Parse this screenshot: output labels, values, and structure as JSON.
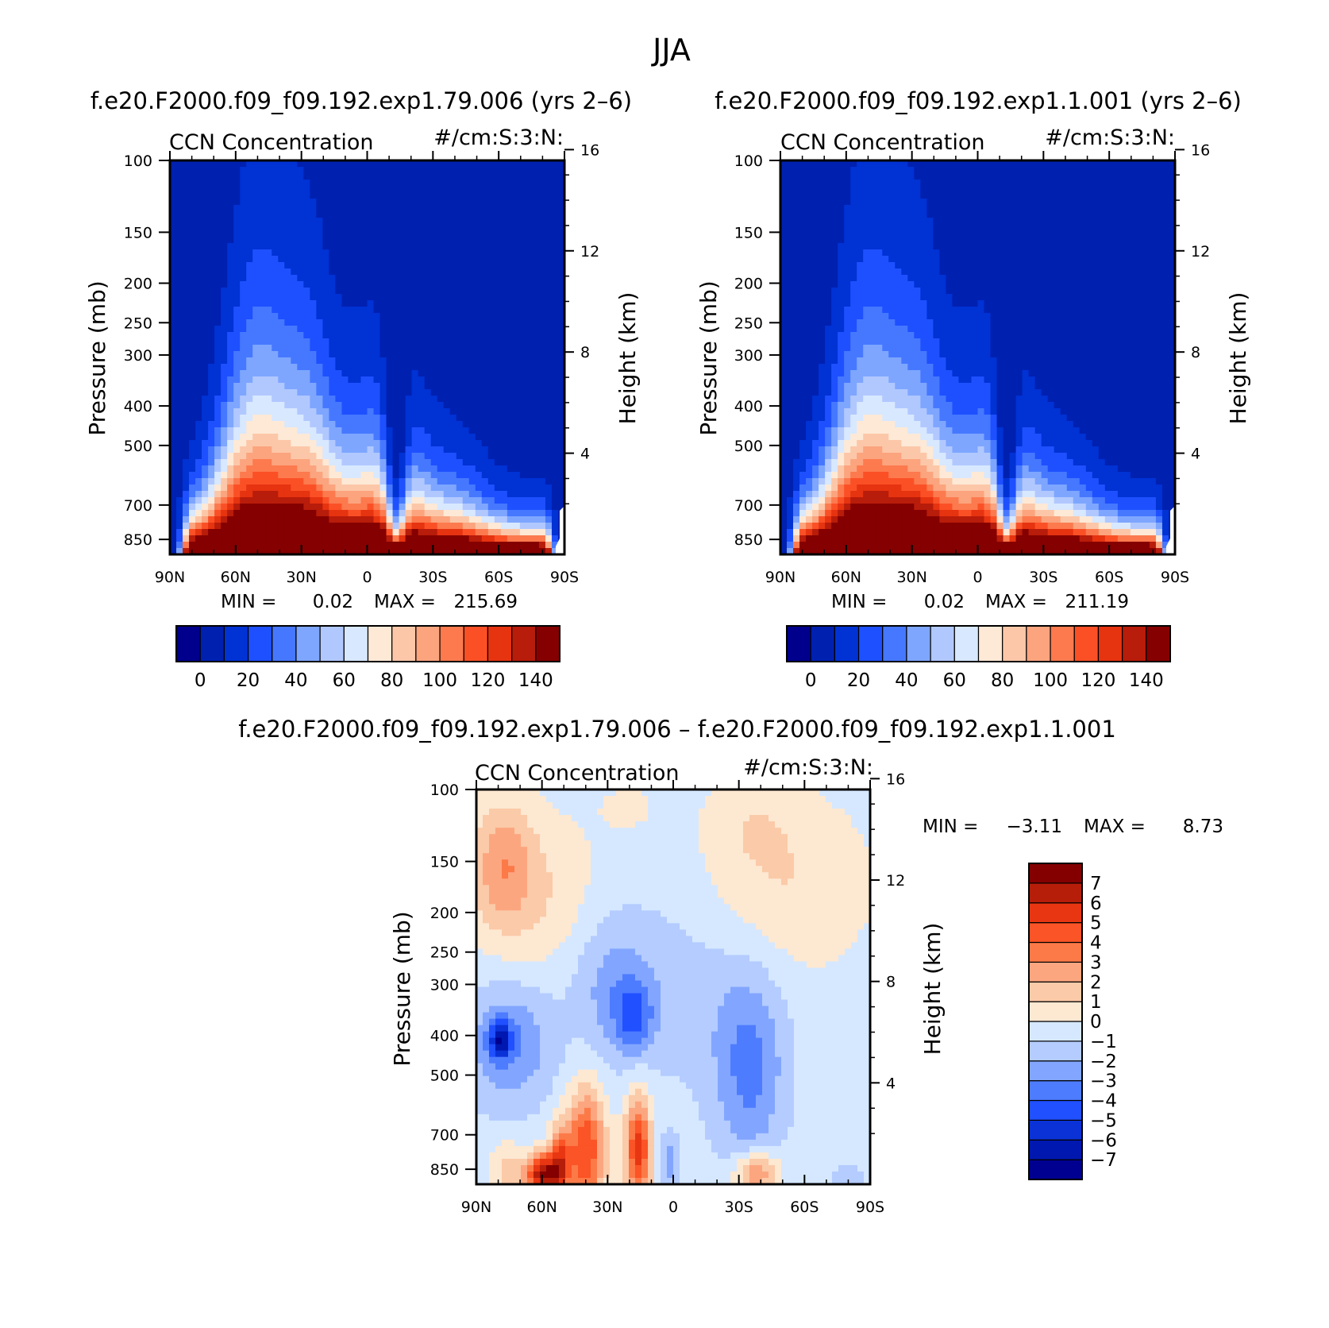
{
  "figure": {
    "title": "JJA",
    "season": "JJA",
    "bg_color": "#ffffff"
  },
  "palettes": {
    "sequential": [
      "#00008c",
      "#0020b0",
      "#0032d4",
      "#1e50ff",
      "#4678ff",
      "#7ea6ff",
      "#b1c8ff",
      "#d8e8ff",
      "#fde9d6",
      "#fcc7a8",
      "#fba47e",
      "#fc7a4e",
      "#fb5026",
      "#e63310",
      "#b81c0a",
      "#850000"
    ],
    "diverging": [
      "#000090",
      "#0018b0",
      "#0a32d6",
      "#2050ff",
      "#4e7cff",
      "#82a6ff",
      "#b4ccff",
      "#d6e8ff",
      "#fde8d2",
      "#fbcaa8",
      "#fca680",
      "#fc7a48",
      "#fb5426",
      "#e83612",
      "#b61e0a",
      "#840000"
    ]
  },
  "chart_data": [
    {
      "id": "panel-case1",
      "type": "heatmap",
      "plot_kind": "zonal-mean pressure-latitude contour",
      "case_title": "f.e20.F2000.f09_f09.192.exp1.79.006 (yrs 2–6)",
      "title_left": "CCN Concentration",
      "title_right": "#/cm:S:3:N:",
      "xlabel": "",
      "ylabel": "Pressure (mb)",
      "ylabel_right": "Height (km)",
      "x_ticks": [
        "90N",
        "60N",
        "30N",
        "0",
        "30S",
        "60S",
        "90S"
      ],
      "x_tick_values": [
        90,
        60,
        30,
        0,
        -30,
        -60,
        -90
      ],
      "y_ticks": [
        "100",
        "150",
        "200",
        "250",
        "300",
        "400",
        "500",
        "700",
        "850"
      ],
      "y_tick_values": [
        100,
        150,
        200,
        250,
        300,
        400,
        500,
        700,
        850
      ],
      "y_range_mb": [
        100,
        925
      ],
      "height_ticks": [
        "16",
        "12",
        "8",
        "4"
      ],
      "height_tick_values_km": [
        16,
        12,
        8,
        4
      ],
      "stats": {
        "min_label": "MIN =",
        "min": "0.02",
        "max_label": "MAX =",
        "max": "215.69"
      },
      "colorbar": {
        "orientation": "horizontal",
        "labels": [
          "0",
          "20",
          "40",
          "60",
          "80",
          "100",
          "120",
          "140"
        ],
        "levels": [
          -10,
          0,
          10,
          20,
          30,
          40,
          50,
          60,
          70,
          80,
          90,
          100,
          110,
          120,
          130,
          140,
          150
        ],
        "palette": "sequential"
      },
      "field": {
        "bands": [
          {
            "level": 7,
            "top": 5.8
          },
          {
            "level": 12,
            "top": 4.0
          },
          {
            "level": 17,
            "top": 3.2
          },
          {
            "level": 22,
            "top": 2.55
          },
          {
            "level": 27,
            "top": 2.05
          },
          {
            "level": 33,
            "top": 1.55
          },
          {
            "level": 40,
            "top": 1.15
          },
          {
            "level": 50,
            "top": 0.8
          },
          {
            "level": 60,
            "top": 0.5
          },
          {
            "level": 70,
            "top": 0.28
          }
        ],
        "background_level": 5,
        "notch": {
          "lat": -13,
          "depth": 3.0
        }
      }
    },
    {
      "id": "panel-case2",
      "type": "heatmap",
      "plot_kind": "zonal-mean pressure-latitude contour",
      "case_title": "f.e20.F2000.f09_f09.192.exp1.1.001 (yrs 2–6)",
      "title_left": "CCN Concentration",
      "title_right": "#/cm:S:3:N:",
      "xlabel": "",
      "ylabel": "Pressure (mb)",
      "ylabel_right": "Height (km)",
      "x_ticks": [
        "90N",
        "60N",
        "30N",
        "0",
        "30S",
        "60S",
        "90S"
      ],
      "x_tick_values": [
        90,
        60,
        30,
        0,
        -30,
        -60,
        -90
      ],
      "y_ticks": [
        "100",
        "150",
        "200",
        "250",
        "300",
        "400",
        "500",
        "700",
        "850"
      ],
      "y_tick_values": [
        100,
        150,
        200,
        250,
        300,
        400,
        500,
        700,
        850
      ],
      "y_range_mb": [
        100,
        925
      ],
      "height_ticks": [
        "16",
        "12",
        "8",
        "4"
      ],
      "height_tick_values_km": [
        16,
        12,
        8,
        4
      ],
      "stats": {
        "min_label": "MIN =",
        "min": "0.02",
        "max_label": "MAX =",
        "max": "211.19"
      },
      "colorbar": {
        "orientation": "horizontal",
        "labels": [
          "0",
          "20",
          "40",
          "60",
          "80",
          "100",
          "120",
          "140"
        ],
        "levels": [
          -10,
          0,
          10,
          20,
          30,
          40,
          50,
          60,
          70,
          80,
          90,
          100,
          110,
          120,
          130,
          140,
          150
        ],
        "palette": "sequential"
      },
      "field": {
        "bands": [
          {
            "level": 7,
            "top": 5.9
          },
          {
            "level": 12,
            "top": 4.1
          },
          {
            "level": 17,
            "top": 3.25
          },
          {
            "level": 22,
            "top": 2.6
          },
          {
            "level": 27,
            "top": 2.1
          },
          {
            "level": 33,
            "top": 1.6
          },
          {
            "level": 40,
            "top": 1.2
          },
          {
            "level": 50,
            "top": 0.85
          },
          {
            "level": 60,
            "top": 0.55
          },
          {
            "level": 70,
            "top": 0.3
          }
        ],
        "background_level": 5,
        "notch": {
          "lat": -13,
          "depth": 3.0
        }
      }
    },
    {
      "id": "panel-diff",
      "type": "heatmap",
      "plot_kind": "zonal-mean pressure-latitude difference contour",
      "case_title": "f.e20.F2000.f09_f09.192.exp1.79.006 – f.e20.F2000.f09_f09.192.exp1.1.001",
      "title_left": "CCN Concentration",
      "title_right": "#/cm:S:3:N:",
      "xlabel": "",
      "ylabel": "Pressure (mb)",
      "ylabel_right": "Height (km)",
      "x_ticks": [
        "90N",
        "60N",
        "30N",
        "0",
        "30S",
        "60S",
        "90S"
      ],
      "x_tick_values": [
        90,
        60,
        30,
        0,
        -30,
        -60,
        -90
      ],
      "y_ticks": [
        "100",
        "150",
        "200",
        "250",
        "300",
        "400",
        "500",
        "700",
        "850"
      ],
      "y_tick_values": [
        100,
        150,
        200,
        250,
        300,
        400,
        500,
        700,
        850
      ],
      "y_range_mb": [
        100,
        925
      ],
      "height_ticks": [
        "16",
        "12",
        "8",
        "4"
      ],
      "height_tick_values_km": [
        16,
        12,
        8,
        4
      ],
      "stats": {
        "min_label": "MIN =",
        "min": "−3.11",
        "max_label": "MAX =",
        "max": "8.73"
      },
      "colorbar": {
        "orientation": "vertical",
        "labels": [
          "7",
          "6",
          "5",
          "4",
          "3",
          "2",
          "1",
          "0",
          "−1",
          "−2",
          "−3",
          "−4",
          "−5",
          "−6",
          "−7"
        ],
        "levels": [
          -8,
          -7,
          -6,
          -5,
          -4,
          -3,
          -2,
          -1,
          0,
          1,
          2,
          3,
          4,
          5,
          6,
          7,
          8
        ],
        "palette": "diverging"
      },
      "field": {
        "background_level": -0.5,
        "blobs": [
          {
            "lat": 65,
            "p": 180,
            "rx": 30,
            "rp": 0.45,
            "value": 1.5
          },
          {
            "lat": 78,
            "p": 150,
            "rx": 14,
            "rp": 0.35,
            "value": 2.5
          },
          {
            "lat": -50,
            "p": 170,
            "rx": 40,
            "rp": 0.5,
            "value": 1.5
          },
          {
            "lat": -35,
            "p": 120,
            "rx": 20,
            "rp": 0.25,
            "value": 0.8
          },
          {
            "lat": 20,
            "p": 110,
            "rx": 18,
            "rp": 0.2,
            "value": 0.6
          },
          {
            "lat": 75,
            "p": 420,
            "rx": 20,
            "rp": 0.35,
            "value": -2.6
          },
          {
            "lat": 79,
            "p": 410,
            "rx": 5,
            "rp": 0.1,
            "value": -4.5
          },
          {
            "lat": 28,
            "p": 300,
            "rx": 18,
            "rp": 0.4,
            "value": -1.8
          },
          {
            "lat": 18,
            "p": 360,
            "rx": 9,
            "rp": 0.2,
            "value": -2.8
          },
          {
            "lat": -35,
            "p": 480,
            "rx": 16,
            "rp": 0.55,
            "value": -2.8
          },
          {
            "lat": -5,
            "p": 300,
            "rx": 30,
            "rp": 0.6,
            "value": -1.0
          },
          {
            "lat": 40,
            "p": 760,
            "rx": 9,
            "rp": 0.35,
            "value": 5.5
          },
          {
            "lat": 16,
            "p": 760,
            "rx": 6,
            "rp": 0.3,
            "value": 6.0
          },
          {
            "lat": 60,
            "p": 880,
            "rx": 7,
            "rp": 0.12,
            "value": 7.5
          },
          {
            "lat": 52,
            "p": 820,
            "rx": 5,
            "rp": 0.2,
            "value": 5.0
          },
          {
            "lat": 75,
            "p": 850,
            "rx": 8,
            "rp": 0.15,
            "value": 2.0
          },
          {
            "lat": -38,
            "p": 870,
            "rx": 10,
            "rp": 0.12,
            "value": 4.0
          },
          {
            "lat": -80,
            "p": 900,
            "rx": 8,
            "rp": 0.1,
            "value": -1.0
          },
          {
            "lat": 2,
            "p": 820,
            "rx": 4,
            "rp": 0.15,
            "value": -2.2
          }
        ]
      }
    }
  ]
}
